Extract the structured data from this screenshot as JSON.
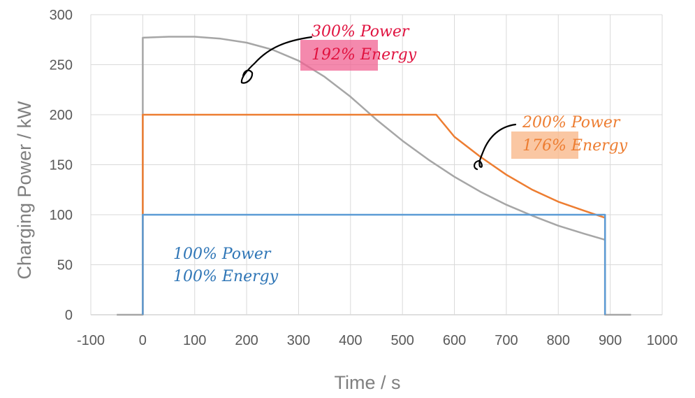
{
  "chart_data": {
    "type": "line",
    "title": "",
    "xlabel": "Time / s",
    "ylabel": "Charging Power  / kW",
    "xlim": [
      -100,
      1000
    ],
    "ylim": [
      0,
      300
    ],
    "xticks": [
      -100,
      0,
      100,
      200,
      300,
      400,
      500,
      600,
      700,
      800,
      900,
      1000
    ],
    "yticks": [
      0,
      50,
      100,
      150,
      200,
      250,
      300
    ],
    "grid": true,
    "colors": {
      "gray": "#A6A6A6",
      "orange": "#ED7D31",
      "blue": "#5B9BD5",
      "red_text": "#E0123F",
      "red_highlight": "#F06292",
      "orange_highlight": "#F9B98C",
      "blue_text": "#2E75B6"
    },
    "series": [
      {
        "name": "300% Power",
        "color": "#A6A6A6",
        "x": [
          -50,
          0,
          0,
          50,
          100,
          150,
          200,
          250,
          300,
          350,
          400,
          450,
          500,
          550,
          600,
          650,
          700,
          750,
          800,
          850,
          890,
          890,
          940
        ],
        "y": [
          0,
          0,
          277,
          278,
          278,
          276,
          272,
          265,
          254,
          238,
          218,
          195,
          174,
          155,
          138,
          123,
          110,
          99,
          89,
          81,
          75,
          0,
          0
        ]
      },
      {
        "name": "200% Power",
        "color": "#ED7D31",
        "x": [
          0,
          0,
          565,
          600,
          650,
          700,
          750,
          800,
          850,
          890,
          890
        ],
        "y": [
          0,
          200,
          200,
          178,
          158,
          140,
          125,
          113,
          104,
          97,
          0
        ]
      },
      {
        "name": "100% Power",
        "color": "#5B9BD5",
        "x": [
          0,
          0,
          890,
          890
        ],
        "y": [
          0,
          100,
          100,
          0
        ]
      }
    ],
    "annotations": [
      {
        "line1": "300% Power",
        "line2": "192% Energy",
        "color": "#E0123F"
      },
      {
        "line1": "200% Power",
        "line2": "176% Energy",
        "color": "#ED7D31"
      },
      {
        "line1": "100% Power",
        "line2": "100% Energy",
        "color": "#2E75B6"
      }
    ]
  }
}
